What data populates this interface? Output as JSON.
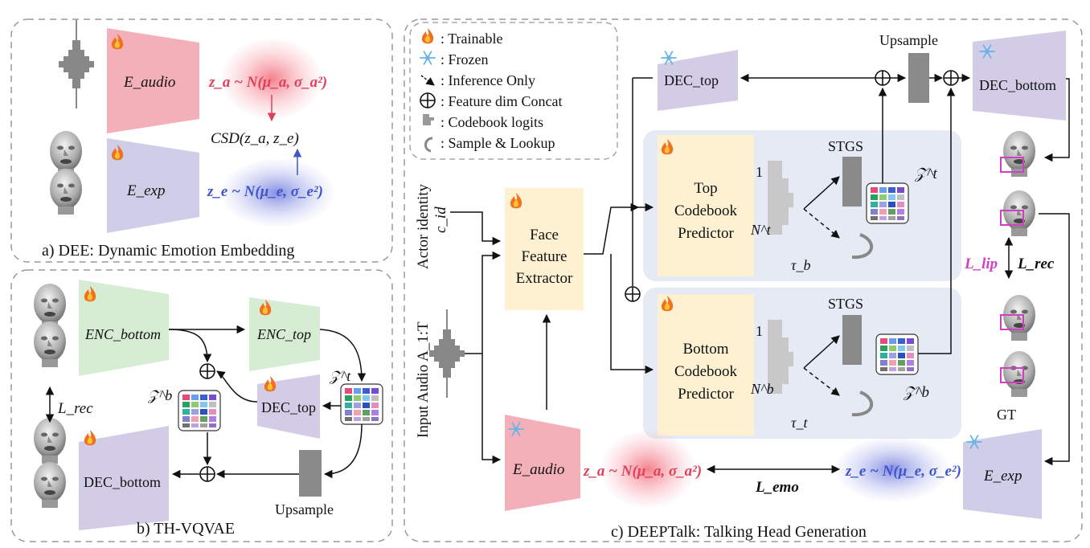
{
  "colors": {
    "audio_pink": "#f4b0b8",
    "exp_lavender": "#cfcde8",
    "enc_green": "#d6ecd3",
    "dec_purple": "#d3cce6",
    "extractor_yellow": "#fdf1d2",
    "predictor_panel": "#e5eaf5",
    "gaussian_pink": "#f47a86",
    "gaussian_blue": "#8c96e6",
    "z_audio_text": "#e0405a",
    "z_exp_text": "#4056c8",
    "lip_magenta": "#d040c0",
    "gray_bar": "#8a8a8a"
  },
  "icons": {
    "trainable": "flame-icon",
    "frozen": "snowflake-icon",
    "concat": "circled-plus-icon",
    "codebook": "codebook-grid-icon",
    "sample": "curved-arrow-icon"
  },
  "panel_a": {
    "caption": "a) DEE: Dynamic Emotion Embedding",
    "e_audio_label": "E_audio",
    "e_exp_label": "E_exp",
    "za_formula": "z_a ~ N(μ_a, σ_a²)",
    "ze_formula": "z_e ~ N(μ_e, σ_e²)",
    "csd_label": "CSD(z_a, z_e)"
  },
  "panel_b": {
    "caption": "b) TH-VQVAE",
    "enc_bottom": "ENC_bottom",
    "enc_top": "ENC_top",
    "dec_top": "DEC_top",
    "dec_bottom": "DEC_bottom",
    "zt": "𝒵^t",
    "zb": "𝒵^b",
    "upsample": "Upsample",
    "l_rec": "L_rec"
  },
  "panel_c": {
    "caption": "c) DEEPTalk: Talking Head Generation",
    "legend": [
      {
        "icon": "flame-icon",
        "text": ": Trainable"
      },
      {
        "icon": "snowflake-icon",
        "text": ": Frozen"
      },
      {
        "icon": "dashed-arrow-icon",
        "text": ": Inference Only"
      },
      {
        "icon": "circled-plus-icon",
        "text": ": Feature dim Concat"
      },
      {
        "icon": "codebook-logits-icon",
        "text": ": Codebook logits"
      },
      {
        "icon": "curved-arrow-icon",
        "text": ": Sample & Lookup"
      }
    ],
    "actor_identity": "Actor identity",
    "c_id": "c_id",
    "input_audio": "Input Audio A_1:T",
    "face_feature_extractor": [
      "Face",
      "Feature",
      "Extractor"
    ],
    "dec_top": "DEC_top",
    "dec_bottom": "DEC_bottom",
    "upsample": "Upsample",
    "top_predictor": [
      "Top",
      "Codebook",
      "Predictor"
    ],
    "bottom_predictor": [
      "Bottom",
      "Codebook",
      "Predictor"
    ],
    "stgs": "STGS",
    "one": "1",
    "n_t": "N^t",
    "n_b": "N^b",
    "tau_b": "τ_b",
    "tau_t": "τ_t",
    "zt": "𝒵^t",
    "zb": "𝒵^b",
    "l_lip": "L_lip",
    "l_rec": "L_rec",
    "gt": "GT",
    "e_audio": "E_audio",
    "e_exp": "E_exp",
    "za_formula": "z_a ~ N(μ_a, σ_a²)",
    "ze_formula": "z_e ~ N(μ_e, σ_e²)",
    "l_emo": "L_emo"
  }
}
